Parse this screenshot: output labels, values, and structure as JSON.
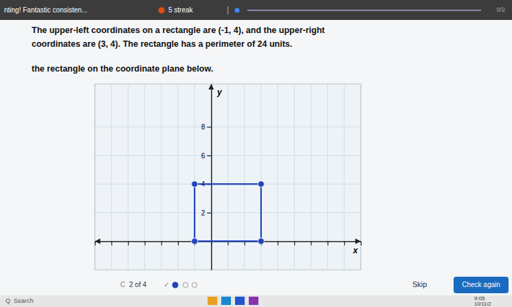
{
  "chart_data": {
    "type": "line",
    "title": [
      "The upper-left coordinates on a rectangle are (-1, 4), and the upper-right",
      "coordinates are (3, 4). The rectangle has a perimeter of 24 units.",
      "the rectangle on the coordinate plane below."
    ],
    "annotations": [
      "nting! Fantastic consisten...",
      "5 streak",
      "|",
      "0/2",
      "C",
      "2 of 4",
      "✓",
      "Skip",
      "Check again",
      "Q",
      "Search",
      "9:05",
      "10/11/2"
    ],
    "x_label": "x",
    "y_label": "y",
    "x": [
      -1,
      3,
      3,
      -1
    ],
    "series": [
      {
        "color": "#2244bb",
        "marker": "circle",
        "values": [
          4,
          4,
          0,
          0
        ]
      }
    ],
    "xlim": [
      -7,
      9
    ],
    "ylim": [
      -2,
      11
    ],
    "xticks": [
      -7,
      -6,
      -5,
      -4,
      -3,
      -2,
      -1,
      0,
      1,
      2,
      3,
      4,
      5,
      6,
      7,
      8,
      9
    ],
    "yticks": [
      8,
      6,
      4,
      2
    ],
    "grid": true,
    "tick_labels": "y"
  }
}
